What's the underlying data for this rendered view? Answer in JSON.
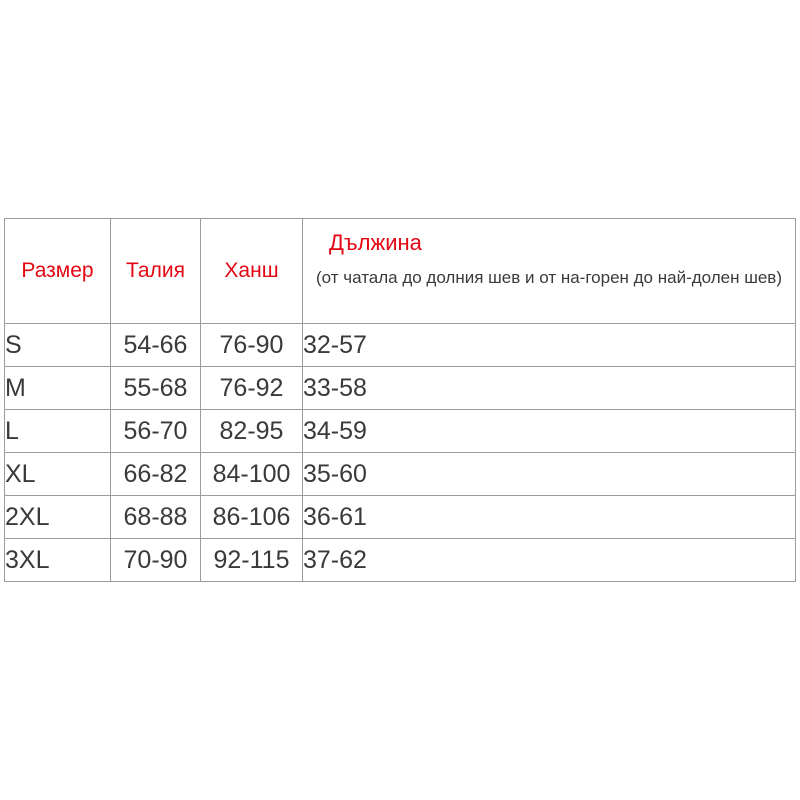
{
  "size_chart": {
    "headers": {
      "size": "Размер",
      "waist": "Талия",
      "hips": "Ханш",
      "length_title": "Дължина",
      "length_subtitle": "(от чатала до долния шев и от на-горен до най-долен шев)"
    },
    "rows": [
      {
        "size": "S",
        "waist": "54-66",
        "hips": "76-90",
        "length": "32-57"
      },
      {
        "size": "M",
        "waist": "55-68",
        "hips": "76-92",
        "length": "33-58"
      },
      {
        "size": "L",
        "waist": "56-70",
        "hips": "82-95",
        "length": "34-59"
      },
      {
        "size": "XL",
        "waist": "66-82",
        "hips": "84-100",
        "length": "35-60"
      },
      {
        "size": "2XL",
        "waist": "68-88",
        "hips": "86-106",
        "length": "36-61"
      },
      {
        "size": "3XL",
        "waist": "70-90",
        "hips": "92-115",
        "length": "37-62"
      }
    ],
    "colors": {
      "header_text": "#e30613",
      "body_text": "#3a3a3a",
      "border": "#9c9c9c",
      "background": "#ffffff"
    }
  }
}
